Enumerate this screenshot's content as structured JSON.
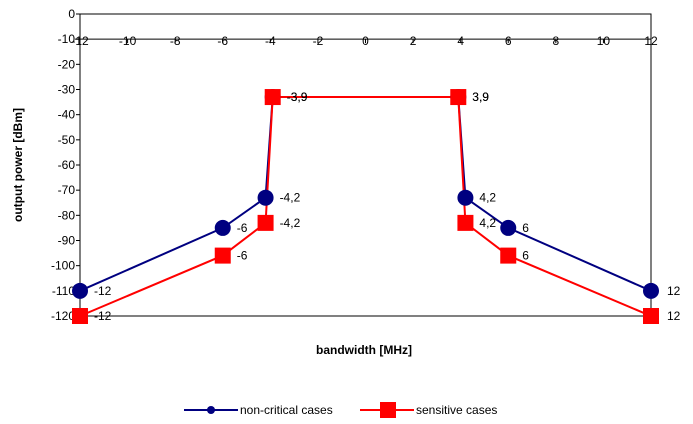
{
  "chart_data": {
    "type": "line",
    "xlabel": "bandwidth [MHz]",
    "ylabel": "output power [dBm]",
    "xlim": [
      -12,
      12
    ],
    "ylim": [
      -120,
      0
    ],
    "x_ticks": [
      "-12",
      "-10",
      "-8",
      "-6",
      "-4",
      "-2",
      "0",
      "2",
      "4",
      "6",
      "8",
      "10",
      "12"
    ],
    "y_ticks": [
      "0",
      "-10",
      "-20",
      "-30",
      "-40",
      "-50",
      "-60",
      "-70",
      "-80",
      "-90",
      "-100",
      "-110",
      "-120"
    ],
    "grid": true,
    "legend_position": "bottom",
    "series": [
      {
        "name": "non-critical cases",
        "color": "#000080",
        "marker": "circle",
        "x": [
          -12,
          -6,
          -4.2,
          -3.9,
          3.9,
          4.2,
          6,
          12
        ],
        "y": [
          -110,
          -85,
          -73,
          -33,
          -33,
          -73,
          -85,
          -110
        ],
        "labels": [
          "-12",
          "-6",
          "-4,2",
          "-3,9",
          "3,9",
          "4,2",
          "6",
          "12"
        ]
      },
      {
        "name": "sensitive cases",
        "color": "#ff0000",
        "marker": "square",
        "x": [
          -12,
          -6,
          -4.2,
          -3.9,
          3.9,
          4.2,
          6,
          12
        ],
        "y": [
          -120,
          -96,
          -83,
          -33,
          -33,
          -83,
          -96,
          -120
        ],
        "labels": [
          "-12",
          "-6",
          "-4,2",
          "-3,9",
          "3,9",
          "4,2",
          "6",
          "12"
        ]
      }
    ]
  }
}
